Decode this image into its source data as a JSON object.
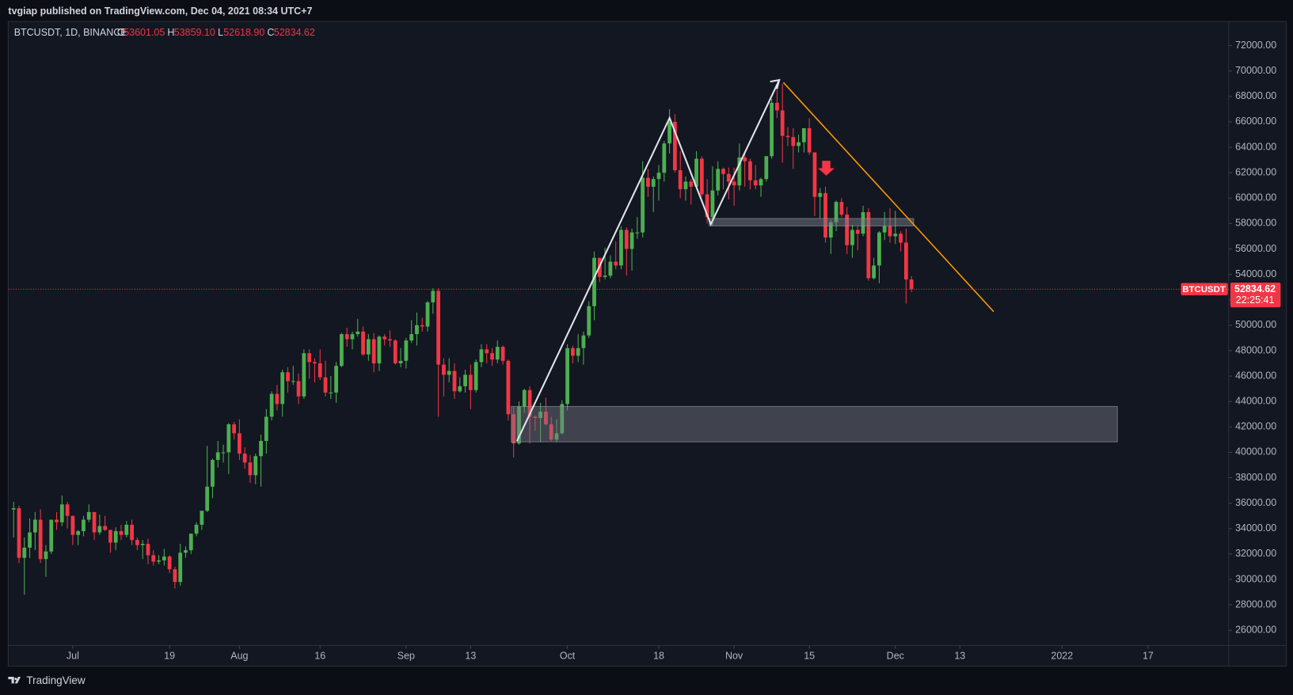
{
  "chart_data": {
    "type": "candlestick",
    "header": "tvgiap published on TradingView.com, Dec 04, 2021 08:34 UTC+7",
    "symbol_label": "BTCUSDT, 1D, BINANCE",
    "ohlc_letters": [
      "O",
      "H",
      "L",
      "C"
    ],
    "ohlc_value_labels": [
      "53601.05",
      "53859.10",
      "52618.90",
      "52834.62"
    ],
    "last_price_tag": "BTCUSDT",
    "countdown": "22:25:41",
    "footer": "TradingView",
    "up_color": "#4caf50",
    "down_color": "#f23645",
    "x": [
      "2021-06-20",
      "2021-06-21",
      "2021-06-22",
      "2021-06-23",
      "2021-06-24",
      "2021-06-25",
      "2021-06-26",
      "2021-06-27",
      "2021-06-28",
      "2021-06-29",
      "2021-06-30",
      "2021-07-01",
      "2021-07-02",
      "2021-07-03",
      "2021-07-04",
      "2021-07-05",
      "2021-07-06",
      "2021-07-07",
      "2021-07-08",
      "2021-07-09",
      "2021-07-10",
      "2021-07-11",
      "2021-07-12",
      "2021-07-13",
      "2021-07-14",
      "2021-07-15",
      "2021-07-16",
      "2021-07-17",
      "2021-07-18",
      "2021-07-19",
      "2021-07-20",
      "2021-07-21",
      "2021-07-22",
      "2021-07-23",
      "2021-07-24",
      "2021-07-25",
      "2021-07-26",
      "2021-07-27",
      "2021-07-28",
      "2021-07-29",
      "2021-07-30",
      "2021-07-31",
      "2021-08-01",
      "2021-08-02",
      "2021-08-03",
      "2021-08-04",
      "2021-08-05",
      "2021-08-06",
      "2021-08-07",
      "2021-08-08",
      "2021-08-09",
      "2021-08-10",
      "2021-08-11",
      "2021-08-12",
      "2021-08-13",
      "2021-08-14",
      "2021-08-15",
      "2021-08-16",
      "2021-08-17",
      "2021-08-18",
      "2021-08-19",
      "2021-08-20",
      "2021-08-21",
      "2021-08-22",
      "2021-08-23",
      "2021-08-24",
      "2021-08-25",
      "2021-08-26",
      "2021-08-27",
      "2021-08-28",
      "2021-08-29",
      "2021-08-30",
      "2021-08-31",
      "2021-09-01",
      "2021-09-02",
      "2021-09-03",
      "2021-09-04",
      "2021-09-05",
      "2021-09-06",
      "2021-09-07",
      "2021-09-08",
      "2021-09-09",
      "2021-09-10",
      "2021-09-11",
      "2021-09-12",
      "2021-09-13",
      "2021-09-14",
      "2021-09-15",
      "2021-09-16",
      "2021-09-17",
      "2021-09-18",
      "2021-09-19",
      "2021-09-20",
      "2021-09-21",
      "2021-09-22",
      "2021-09-23",
      "2021-09-24",
      "2021-09-25",
      "2021-09-26",
      "2021-09-27",
      "2021-09-28",
      "2021-09-29",
      "2021-09-30",
      "2021-10-01",
      "2021-10-02",
      "2021-10-03",
      "2021-10-04",
      "2021-10-05",
      "2021-10-06",
      "2021-10-07",
      "2021-10-08",
      "2021-10-09",
      "2021-10-10",
      "2021-10-11",
      "2021-10-12",
      "2021-10-13",
      "2021-10-14",
      "2021-10-15",
      "2021-10-16",
      "2021-10-17",
      "2021-10-18",
      "2021-10-19",
      "2021-10-20",
      "2021-10-21",
      "2021-10-22",
      "2021-10-23",
      "2021-10-24",
      "2021-10-25",
      "2021-10-26",
      "2021-10-27",
      "2021-10-28",
      "2021-10-29",
      "2021-10-30",
      "2021-10-31",
      "2021-11-01",
      "2021-11-02",
      "2021-11-03",
      "2021-11-04",
      "2021-11-05",
      "2021-11-06",
      "2021-11-07",
      "2021-11-08",
      "2021-11-09",
      "2021-11-10",
      "2021-11-11",
      "2021-11-12",
      "2021-11-13",
      "2021-11-14",
      "2021-11-15",
      "2021-11-16",
      "2021-11-17",
      "2021-11-18",
      "2021-11-19",
      "2021-11-20",
      "2021-11-21",
      "2021-11-22",
      "2021-11-23",
      "2021-11-24",
      "2021-11-25",
      "2021-11-26",
      "2021-11-27",
      "2021-11-28",
      "2021-11-29",
      "2021-11-30",
      "2021-12-01",
      "2021-12-02",
      "2021-12-03",
      "2021-12-04"
    ],
    "open": [
      35500,
      35600,
      31700,
      32500,
      33700,
      34700,
      31600,
      32200,
      34700,
      34500,
      35900,
      35000,
      33500,
      33800,
      34700,
      35300,
      33700,
      34200,
      33900,
      32900,
      33800,
      33500,
      34300,
      33100,
      32700,
      32800,
      31900,
      31400,
      31500,
      31800,
      30800,
      29800,
      32100,
      32300,
      33600,
      34300,
      35400,
      37300,
      39400,
      40000,
      40000,
      42200,
      41500,
      39900,
      39200,
      38200,
      39700,
      40900,
      42800,
      44600,
      43800,
      46300,
      45600,
      45600,
      44400,
      47800,
      47100,
      47000,
      45900,
      44700,
      44700,
      46800,
      49300,
      48900,
      49300,
      49500,
      47700,
      48900,
      47000,
      49100,
      48900,
      48800,
      47000,
      47200,
      48800,
      49300,
      50000,
      49900,
      51800,
      52700,
      46900,
      46100,
      46400,
      44800,
      45200,
      46100,
      44900,
      47100,
      48100,
      47800,
      47300,
      48300,
      47200,
      43000,
      40700,
      43600,
      44900,
      42800,
      42700,
      43200,
      42200,
      41000,
      41500,
      43800,
      48200,
      47600,
      48200,
      49200,
      51500,
      55300,
      53800,
      53900,
      55000,
      54700,
      57500,
      56000,
      57300,
      57300,
      61600,
      60900,
      61500,
      62000,
      64300,
      66000,
      62200,
      60700,
      61300,
      60900,
      63100,
      60300,
      58500,
      60600,
      62300,
      61900,
      61300,
      61000,
      63200,
      62900,
      61400,
      61000,
      61500,
      63300,
      67500,
      66900,
      64900,
      64800,
      64100,
      64400,
      65500,
      63600,
      60100,
      60400,
      56900,
      58100,
      59700,
      58700,
      56300,
      57500,
      57200,
      58900,
      53700,
      54700,
      57300,
      57800,
      57000,
      57200,
      56500,
      53601.05
    ],
    "high": [
      36100,
      35800,
      33300,
      34800,
      35300,
      35500,
      32700,
      34700,
      35300,
      36600,
      36100,
      35000,
      33900,
      35000,
      35900,
      35300,
      35100,
      35000,
      33900,
      34100,
      34300,
      34600,
      34700,
      33300,
      33100,
      33200,
      32300,
      31900,
      32400,
      31900,
      31000,
      32800,
      32600,
      33600,
      34500,
      35400,
      40500,
      39500,
      40900,
      40600,
      42300,
      42400,
      42600,
      40400,
      39800,
      39900,
      41400,
      43400,
      44800,
      45300,
      46500,
      46700,
      46800,
      46200,
      48100,
      48100,
      47400,
      48100,
      47200,
      46000,
      47100,
      49400,
      49800,
      49500,
      50500,
      49900,
      49300,
      49400,
      49200,
      49300,
      49600,
      48900,
      48200,
      49000,
      50400,
      51000,
      50600,
      51900,
      52900,
      52900,
      47400,
      47400,
      47000,
      45900,
      46500,
      46900,
      47300,
      48500,
      48500,
      48200,
      48800,
      48400,
      47300,
      43600,
      44000,
      45000,
      45200,
      42900,
      43900,
      44300,
      42800,
      42600,
      44100,
      48500,
      48400,
      49300,
      49500,
      51900,
      55800,
      55300,
      56100,
      55500,
      56600,
      57800,
      57700,
      57600,
      58500,
      62900,
      62300,
      61700,
      62600,
      64500,
      67000,
      66600,
      63700,
      61700,
      61500,
      63700,
      63300,
      61500,
      62500,
      62900,
      62400,
      62400,
      62400,
      64300,
      63500,
      63100,
      62600,
      61600,
      63300,
      67800,
      68500,
      69000,
      65600,
      65500,
      65000,
      65500,
      66300,
      63600,
      60800,
      60900,
      58300,
      59800,
      60000,
      59300,
      57900,
      57800,
      59400,
      59200,
      55300,
      57400,
      58900,
      59200,
      59000,
      57400,
      57600,
      53859.1
    ],
    "low": [
      33300,
      31300,
      28800,
      31700,
      32300,
      31300,
      30200,
      32000,
      33900,
      34200,
      34000,
      32700,
      32700,
      33400,
      34500,
      33100,
      33500,
      33800,
      32100,
      32300,
      33100,
      33300,
      32700,
      32300,
      31600,
      31200,
      31100,
      31200,
      31100,
      30500,
      29300,
      29500,
      31700,
      32000,
      33400,
      33900,
      35300,
      36400,
      38800,
      39200,
      38300,
      41000,
      39400,
      38700,
      37600,
      37500,
      37300,
      39900,
      42500,
      43300,
      42800,
      44700,
      45300,
      43800,
      44200,
      45800,
      45500,
      45700,
      44400,
      44200,
      43900,
      46700,
      48300,
      48100,
      49100,
      47600,
      47200,
      46300,
      46400,
      48400,
      48300,
      46900,
      46700,
      46600,
      48600,
      48400,
      49500,
      49500,
      50900,
      42800,
      44400,
      45500,
      44200,
      44700,
      44700,
      43400,
      44700,
      46700,
      47000,
      46800,
      47000,
      46900,
      42500,
      39600,
      40600,
      43100,
      40700,
      41700,
      40800,
      42100,
      40900,
      40800,
      41400,
      43300,
      47000,
      47100,
      46900,
      49000,
      50400,
      53400,
      53600,
      53700,
      54400,
      54400,
      53900,
      54300,
      56800,
      56900,
      60100,
      58900,
      59800,
      61300,
      63500,
      62000,
      60000,
      59800,
      59500,
      60700,
      60100,
      58000,
      57800,
      60200,
      60700,
      59900,
      59400,
      60600,
      60900,
      60700,
      60700,
      60100,
      61300,
      63100,
      66300,
      62800,
      64100,
      62300,
      63600,
      63600,
      63400,
      58600,
      58400,
      56500,
      55600,
      57400,
      58500,
      55600,
      55300,
      55900,
      57000,
      53500,
      53600,
      53300,
      56700,
      56500,
      56400,
      55800,
      51700,
      52618.9
    ],
    "close": [
      35600,
      31700,
      32500,
      33700,
      34700,
      31600,
      32200,
      34700,
      34500,
      35900,
      35000,
      33500,
      33800,
      34700,
      35300,
      33700,
      34200,
      33900,
      32900,
      33800,
      33500,
      34300,
      33100,
      32700,
      32800,
      31900,
      31400,
      31500,
      31800,
      30800,
      29800,
      32100,
      32300,
      33600,
      34300,
      35400,
      37300,
      39400,
      40000,
      40000,
      42200,
      41500,
      39900,
      39200,
      38200,
      39700,
      40900,
      42800,
      44600,
      43800,
      46300,
      45600,
      45600,
      44400,
      47800,
      47100,
      47000,
      45900,
      44700,
      44700,
      46800,
      49300,
      48900,
      49300,
      49500,
      47700,
      48900,
      47000,
      49100,
      48900,
      48800,
      47000,
      47200,
      48800,
      49300,
      50000,
      49900,
      51800,
      52700,
      46900,
      46100,
      46400,
      44800,
      45200,
      46100,
      44900,
      47100,
      48100,
      47800,
      47300,
      48300,
      47200,
      43000,
      40700,
      43600,
      44900,
      42800,
      42700,
      43200,
      42200,
      41000,
      41500,
      43800,
      48200,
      47600,
      48200,
      49200,
      51500,
      55300,
      53800,
      53900,
      55000,
      54700,
      57500,
      56000,
      57300,
      57300,
      61600,
      60900,
      61500,
      62000,
      64300,
      66000,
      62200,
      60700,
      61300,
      60900,
      63100,
      60300,
      58500,
      60600,
      62300,
      61900,
      61300,
      61000,
      63200,
      62900,
      61400,
      61000,
      61500,
      63300,
      67500,
      66900,
      64900,
      64800,
      64100,
      64400,
      65500,
      63600,
      60100,
      60400,
      56900,
      58100,
      59700,
      58700,
      56300,
      57500,
      57200,
      58900,
      53700,
      54700,
      57300,
      57800,
      57000,
      57200,
      56500,
      53601.05,
      52834.62
    ],
    "xlim": [
      "2021-06-19",
      "2022-02-01"
    ],
    "xticks": [
      {
        "value": "2021-07-01",
        "label": "Jul"
      },
      {
        "value": "2021-07-19",
        "label": "19"
      },
      {
        "value": "2021-08-01",
        "label": "Aug"
      },
      {
        "value": "2021-08-16",
        "label": "16"
      },
      {
        "value": "2021-09-01",
        "label": "Sep"
      },
      {
        "value": "2021-09-13",
        "label": "13"
      },
      {
        "value": "2021-10-01",
        "label": "Oct"
      },
      {
        "value": "2021-10-18",
        "label": "18"
      },
      {
        "value": "2021-11-01",
        "label": "Nov"
      },
      {
        "value": "2021-11-15",
        "label": "15"
      },
      {
        "value": "2021-12-01",
        "label": "Dec"
      },
      {
        "value": "2021-12-13",
        "label": "13"
      },
      {
        "value": "2022-01-01",
        "label": "2022"
      },
      {
        "value": "2022-01-17",
        "label": "17"
      }
    ],
    "ylim": [
      24800,
      73900
    ],
    "yticks": [
      {
        "value": 26000,
        "label": "26000.00"
      },
      {
        "value": 28000,
        "label": "28000.00"
      },
      {
        "value": 30000,
        "label": "30000.00"
      },
      {
        "value": 32000,
        "label": "32000.00"
      },
      {
        "value": 34000,
        "label": "34000.00"
      },
      {
        "value": 36000,
        "label": "36000.00"
      },
      {
        "value": 38000,
        "label": "38000.00"
      },
      {
        "value": 40000,
        "label": "40000.00"
      },
      {
        "value": 42000,
        "label": "42000.00"
      },
      {
        "value": 44000,
        "label": "44000.00"
      },
      {
        "value": 46000,
        "label": "46000.00"
      },
      {
        "value": 48000,
        "label": "48000.00"
      },
      {
        "value": 50000,
        "label": "50000.00"
      },
      {
        "value": 52000,
        "label": "52000.00"
      },
      {
        "value": 54000,
        "label": "54000.00"
      },
      {
        "value": 56000,
        "label": "56000.00"
      },
      {
        "value": 58000,
        "label": "58000.00"
      },
      {
        "value": 60000,
        "label": "60000.00"
      },
      {
        "value": 62000,
        "label": "62000.00"
      },
      {
        "value": 64000,
        "label": "64000.00"
      },
      {
        "value": 66000,
        "label": "66000.00"
      },
      {
        "value": 68000,
        "label": "68000.00"
      },
      {
        "value": 70000,
        "label": "70000.00"
      },
      {
        "value": 72000,
        "label": "72000.00"
      }
    ]
  }
}
